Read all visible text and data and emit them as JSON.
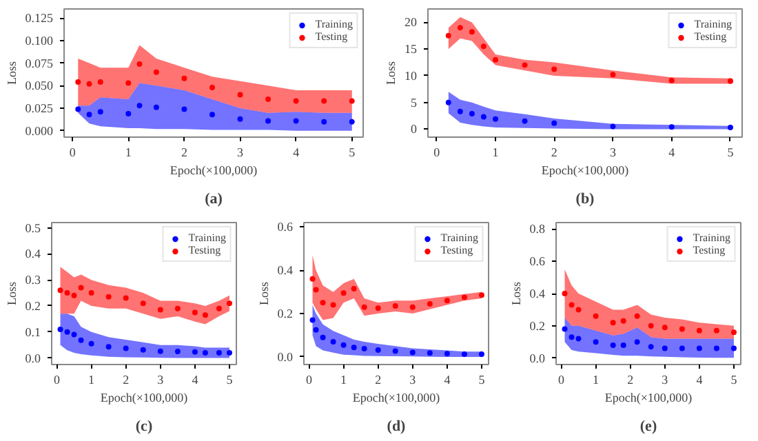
{
  "chart_data": [
    {
      "type": "scatter",
      "title": "(a)",
      "xlabel": "Epoch(×100,000)",
      "ylabel": "Loss",
      "legend": "top right",
      "marker": "circle",
      "xlim": [
        -0.15,
        5.2
      ],
      "ylim": [
        -0.007,
        0.135
      ],
      "xticks": [
        0,
        1,
        2,
        3,
        4,
        5
      ],
      "yticks": [
        {
          "value": 0,
          "label": "0.000"
        },
        {
          "value": 0.025,
          "label": "0.025"
        },
        {
          "value": 0.05,
          "label": "0.050"
        },
        {
          "value": 0.075,
          "label": "0.075"
        },
        {
          "value": 0.1,
          "label": "0.100"
        },
        {
          "value": 0.125,
          "label": "0.125"
        }
      ],
      "x": [
        0.1,
        0.3,
        0.5,
        1.0,
        1.2,
        1.5,
        2.0,
        2.5,
        3.0,
        3.5,
        4.0,
        4.5,
        5.0
      ],
      "series": [
        {
          "name": "Training",
          "color": "#0000ff",
          "values": [
            0.024,
            0.018,
            0.021,
            0.019,
            0.028,
            0.026,
            0.024,
            0.018,
            0.013,
            0.011,
            0.011,
            0.01,
            0.01
          ],
          "lower": [
            0.02,
            0.008,
            0.005,
            0.003,
            0.003,
            0.002,
            0.002,
            0.001,
            0.001,
            0.001,
            0,
            0,
            0
          ],
          "upper": [
            0.028,
            0.028,
            0.037,
            0.035,
            0.053,
            0.05,
            0.045,
            0.035,
            0.025,
            0.02,
            0.021,
            0.02,
            0.02
          ]
        },
        {
          "name": "Testing",
          "color": "#ff0000",
          "values": [
            0.054,
            0.052,
            0.054,
            0.053,
            0.074,
            0.065,
            0.058,
            0.048,
            0.04,
            0.035,
            0.033,
            0.033,
            0.033
          ],
          "lower": [
            0.028,
            0.028,
            0.037,
            0.035,
            0.053,
            0.05,
            0.045,
            0.035,
            0.025,
            0.02,
            0.021,
            0.02,
            0.02
          ],
          "upper": [
            0.08,
            0.075,
            0.07,
            0.07,
            0.095,
            0.08,
            0.07,
            0.06,
            0.055,
            0.05,
            0.045,
            0.045,
            0.045
          ]
        }
      ]
    },
    {
      "type": "scatter",
      "title": "(b)",
      "xlabel": "Epoch(×100,000)",
      "ylabel": "Loss",
      "legend": "top right",
      "marker": "circle",
      "xlim": [
        -0.15,
        5.2
      ],
      "ylim": [
        -1.5,
        22.5
      ],
      "xticks": [
        0,
        1,
        2,
        3,
        4,
        5
      ],
      "yticks": [
        0,
        5,
        10,
        15,
        20
      ],
      "x": [
        0.2,
        0.4,
        0.6,
        0.8,
        1.0,
        1.5,
        2.0,
        3.0,
        4.0,
        5.0
      ],
      "series": [
        {
          "name": "Training",
          "color": "#0000ff",
          "values": [
            5,
            3.3,
            2.9,
            2.3,
            1.9,
            1.5,
            1.1,
            0.5,
            0.4,
            0.3
          ],
          "lower": [
            3,
            1.2,
            0.8,
            0.5,
            0.3,
            0.2,
            0.1,
            0,
            0,
            0
          ],
          "upper": [
            7,
            5.5,
            5,
            4.2,
            3.5,
            2.8,
            2,
            1,
            0.8,
            0.6
          ]
        },
        {
          "name": "Testing",
          "color": "#ff0000",
          "values": [
            17.5,
            19,
            18.2,
            15.5,
            13,
            12,
            11.2,
            10.2,
            9.1,
            9
          ],
          "lower": [
            15,
            17,
            16.5,
            14,
            12,
            11,
            10,
            9.5,
            8.5,
            8.5
          ],
          "upper": [
            19,
            21,
            20,
            17,
            14,
            13,
            12.5,
            11,
            9.7,
            9.5
          ]
        }
      ]
    },
    {
      "type": "scatter",
      "title": "(c)",
      "xlabel": "Epoch(×100,000)",
      "ylabel": "Loss",
      "legend": "top right",
      "marker": "circle",
      "xlim": [
        -0.15,
        5.2
      ],
      "ylim": [
        -0.025,
        0.52
      ],
      "xticks": [
        0,
        1,
        2,
        3,
        4,
        5
      ],
      "yticks": [
        {
          "value": 0,
          "label": "0.0"
        },
        0.1,
        0.2,
        0.3,
        0.4,
        0.5
      ],
      "x": [
        0.1,
        0.3,
        0.5,
        0.7,
        1.0,
        1.5,
        2.0,
        2.5,
        3.0,
        3.5,
        4.0,
        4.3,
        4.7,
        5.0
      ],
      "series": [
        {
          "name": "Training",
          "color": "#0000ff",
          "values": [
            0.11,
            0.1,
            0.09,
            0.068,
            0.055,
            0.043,
            0.037,
            0.031,
            0.026,
            0.025,
            0.023,
            0.02,
            0.02,
            0.02
          ],
          "lower": [
            0.05,
            0.03,
            0.02,
            0.015,
            0.01,
            0.005,
            0.003,
            0.002,
            0.001,
            0,
            0,
            0,
            0,
            0
          ],
          "upper": [
            0.17,
            0.17,
            0.16,
            0.12,
            0.1,
            0.08,
            0.07,
            0.06,
            0.05,
            0.05,
            0.045,
            0.04,
            0.04,
            0.04
          ]
        },
        {
          "name": "Testing",
          "color": "#ff0000",
          "values": [
            0.26,
            0.25,
            0.24,
            0.27,
            0.25,
            0.235,
            0.23,
            0.21,
            0.185,
            0.19,
            0.175,
            0.165,
            0.19,
            0.21
          ],
          "lower": [
            0.17,
            0.17,
            0.17,
            0.22,
            0.2,
            0.19,
            0.19,
            0.17,
            0.15,
            0.16,
            0.14,
            0.13,
            0.16,
            0.18
          ],
          "upper": [
            0.35,
            0.33,
            0.31,
            0.32,
            0.3,
            0.28,
            0.27,
            0.25,
            0.22,
            0.22,
            0.21,
            0.2,
            0.22,
            0.24
          ]
        }
      ]
    },
    {
      "type": "scatter",
      "title": "(d)",
      "xlabel": "Epoch(×100,000)",
      "ylabel": "Loss",
      "legend": "top right",
      "marker": "circle",
      "xlim": [
        -0.15,
        5.2
      ],
      "ylim": [
        -0.035,
        0.62
      ],
      "xticks": [
        0,
        1,
        2,
        3,
        4,
        5
      ],
      "yticks": [
        {
          "value": 0,
          "label": "0.0"
        },
        0.2,
        0.4,
        0.6
      ],
      "x": [
        0.1,
        0.2,
        0.4,
        0.7,
        1.0,
        1.3,
        1.6,
        2.0,
        2.5,
        3.0,
        3.5,
        4.0,
        4.5,
        5.0
      ],
      "series": [
        {
          "name": "Training",
          "color": "#0000ff",
          "values": [
            0.17,
            0.125,
            0.09,
            0.07,
            0.055,
            0.044,
            0.038,
            0.032,
            0.027,
            0.021,
            0.018,
            0.015,
            0.013,
            0.013
          ],
          "lower": [
            0.1,
            0.05,
            0.03,
            0.02,
            0.01,
            0.008,
            0.005,
            0.004,
            0.003,
            0.002,
            0.001,
            0,
            0,
            0
          ],
          "upper": [
            0.24,
            0.2,
            0.15,
            0.12,
            0.1,
            0.08,
            0.07,
            0.06,
            0.05,
            0.04,
            0.035,
            0.03,
            0.025,
            0.025
          ]
        },
        {
          "name": "Testing",
          "color": "#ff0000",
          "values": [
            0.36,
            0.31,
            0.25,
            0.24,
            0.295,
            0.315,
            0.23,
            0.225,
            0.235,
            0.23,
            0.245,
            0.26,
            0.275,
            0.285
          ],
          "lower": [
            0.25,
            0.22,
            0.17,
            0.18,
            0.25,
            0.27,
            0.19,
            0.2,
            0.21,
            0.2,
            0.22,
            0.24,
            0.26,
            0.27
          ],
          "upper": [
            0.47,
            0.4,
            0.33,
            0.3,
            0.34,
            0.36,
            0.27,
            0.25,
            0.26,
            0.26,
            0.27,
            0.28,
            0.29,
            0.3
          ]
        }
      ]
    },
    {
      "type": "scatter",
      "title": "(e)",
      "xlabel": "Epoch(×100,000)",
      "ylabel": "Loss",
      "legend": "top right",
      "marker": "circle",
      "xlim": [
        -0.15,
        5.2
      ],
      "ylim": [
        -0.04,
        0.84
      ],
      "xticks": [
        0,
        1,
        2,
        3,
        4,
        5
      ],
      "yticks": [
        {
          "value": 0,
          "label": "0.0"
        },
        0.2,
        0.4,
        0.6,
        0.8
      ],
      "x": [
        0.1,
        0.3,
        0.5,
        1.0,
        1.5,
        1.8,
        2.2,
        2.6,
        3.0,
        3.5,
        4.0,
        4.5,
        5.0
      ],
      "series": [
        {
          "name": "Training",
          "color": "#0000ff",
          "values": [
            0.18,
            0.13,
            0.12,
            0.1,
            0.08,
            0.08,
            0.1,
            0.07,
            0.06,
            0.06,
            0.06,
            0.06,
            0.06
          ],
          "lower": [
            0.1,
            0.05,
            0.04,
            0.03,
            0.02,
            0.015,
            0.015,
            0.01,
            0.008,
            0.005,
            0.003,
            0.002,
            0.002
          ],
          "upper": [
            0.25,
            0.2,
            0.2,
            0.17,
            0.14,
            0.15,
            0.19,
            0.13,
            0.12,
            0.12,
            0.12,
            0.12,
            0.12
          ]
        },
        {
          "name": "Testing",
          "color": "#ff0000",
          "values": [
            0.4,
            0.33,
            0.3,
            0.26,
            0.22,
            0.23,
            0.26,
            0.2,
            0.19,
            0.18,
            0.17,
            0.17,
            0.16
          ],
          "lower": [
            0.25,
            0.2,
            0.2,
            0.17,
            0.14,
            0.15,
            0.19,
            0.13,
            0.12,
            0.12,
            0.12,
            0.12,
            0.12
          ],
          "upper": [
            0.55,
            0.45,
            0.4,
            0.35,
            0.3,
            0.3,
            0.33,
            0.27,
            0.25,
            0.24,
            0.22,
            0.21,
            0.2
          ]
        }
      ]
    }
  ]
}
